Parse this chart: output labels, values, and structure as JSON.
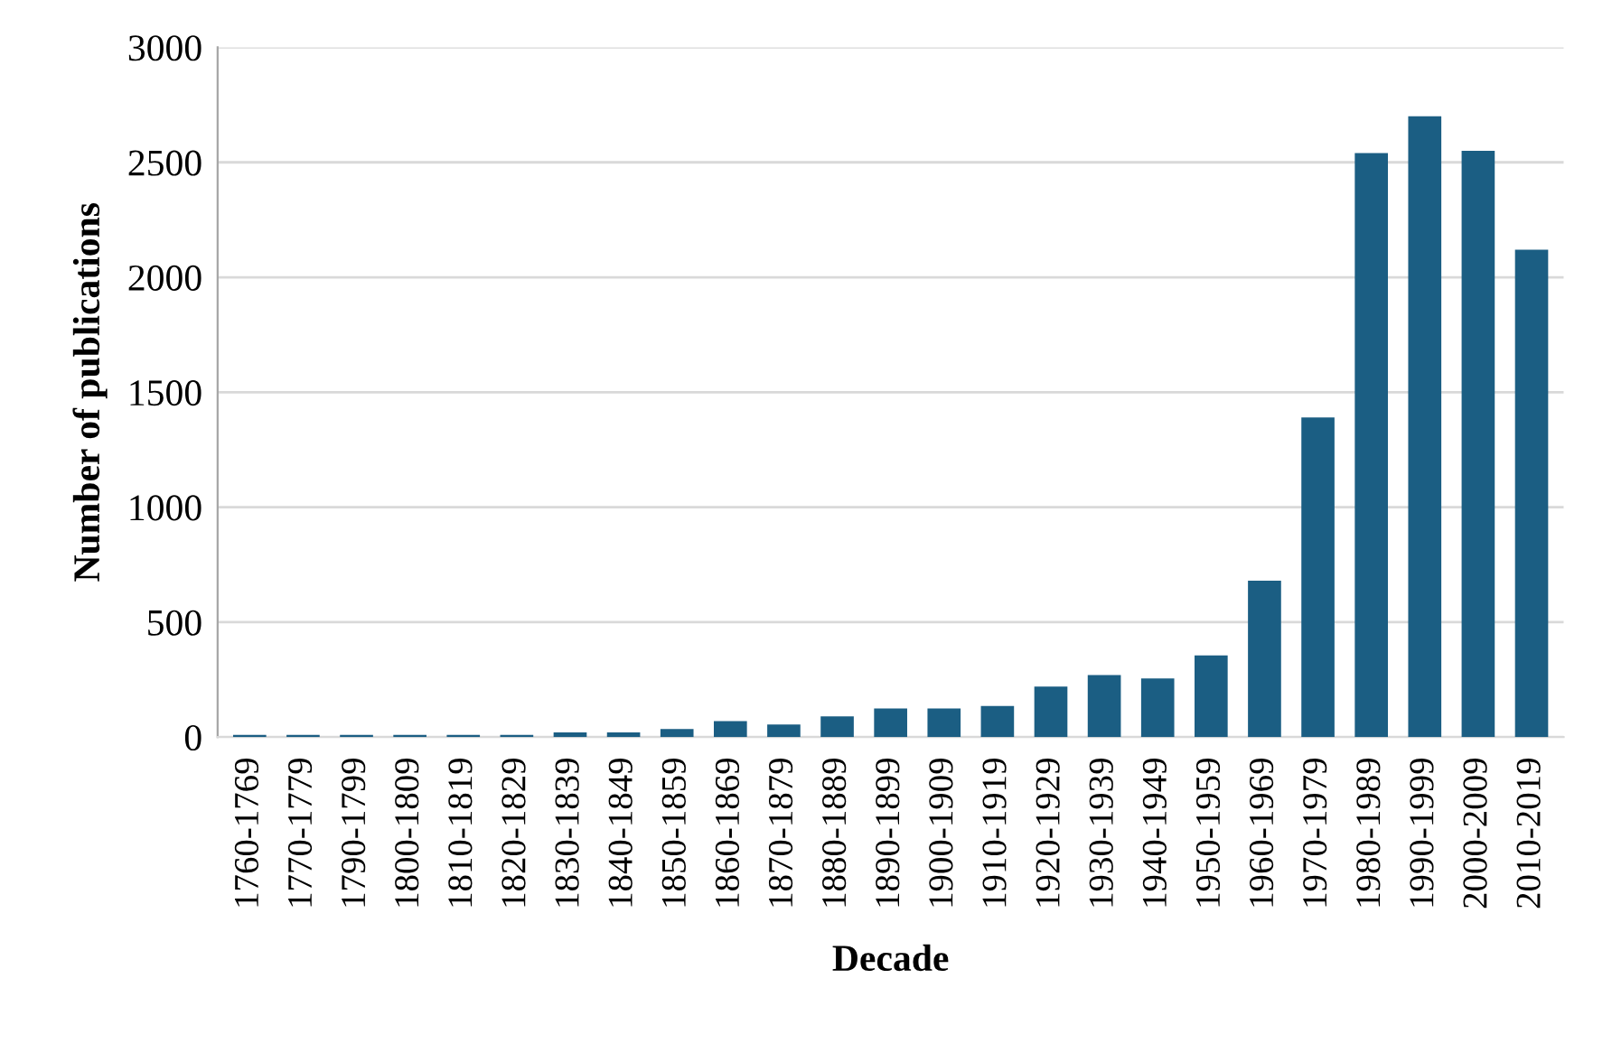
{
  "chart_data": {
    "type": "bar",
    "xlabel": "Decade",
    "ylabel": "Number of publications",
    "categories": [
      "1760-1769",
      "1770-1779",
      "1790-1799",
      "1800-1809",
      "1810-1819",
      "1820-1829",
      "1830-1839",
      "1840-1849",
      "1850-1859",
      "1860-1869",
      "1870-1879",
      "1880-1889",
      "1890-1899",
      "1900-1909",
      "1910-1919",
      "1920-1929",
      "1930-1939",
      "1940-1949",
      "1950-1959",
      "1960-1969",
      "1970-1979",
      "1980-1989",
      "1990-1999",
      "2000-2009",
      "2010-2019"
    ],
    "values": [
      10,
      10,
      10,
      10,
      10,
      10,
      20,
      20,
      35,
      70,
      55,
      90,
      125,
      125,
      135,
      220,
      270,
      255,
      355,
      680,
      1390,
      2540,
      2700,
      2550,
      2120
    ],
    "color": "#1b5e83",
    "ylim": [
      0,
      3000
    ],
    "yticks": [
      0,
      500,
      1000,
      1500,
      2000,
      2500,
      3000
    ],
    "grid": "y",
    "legend": false
  }
}
